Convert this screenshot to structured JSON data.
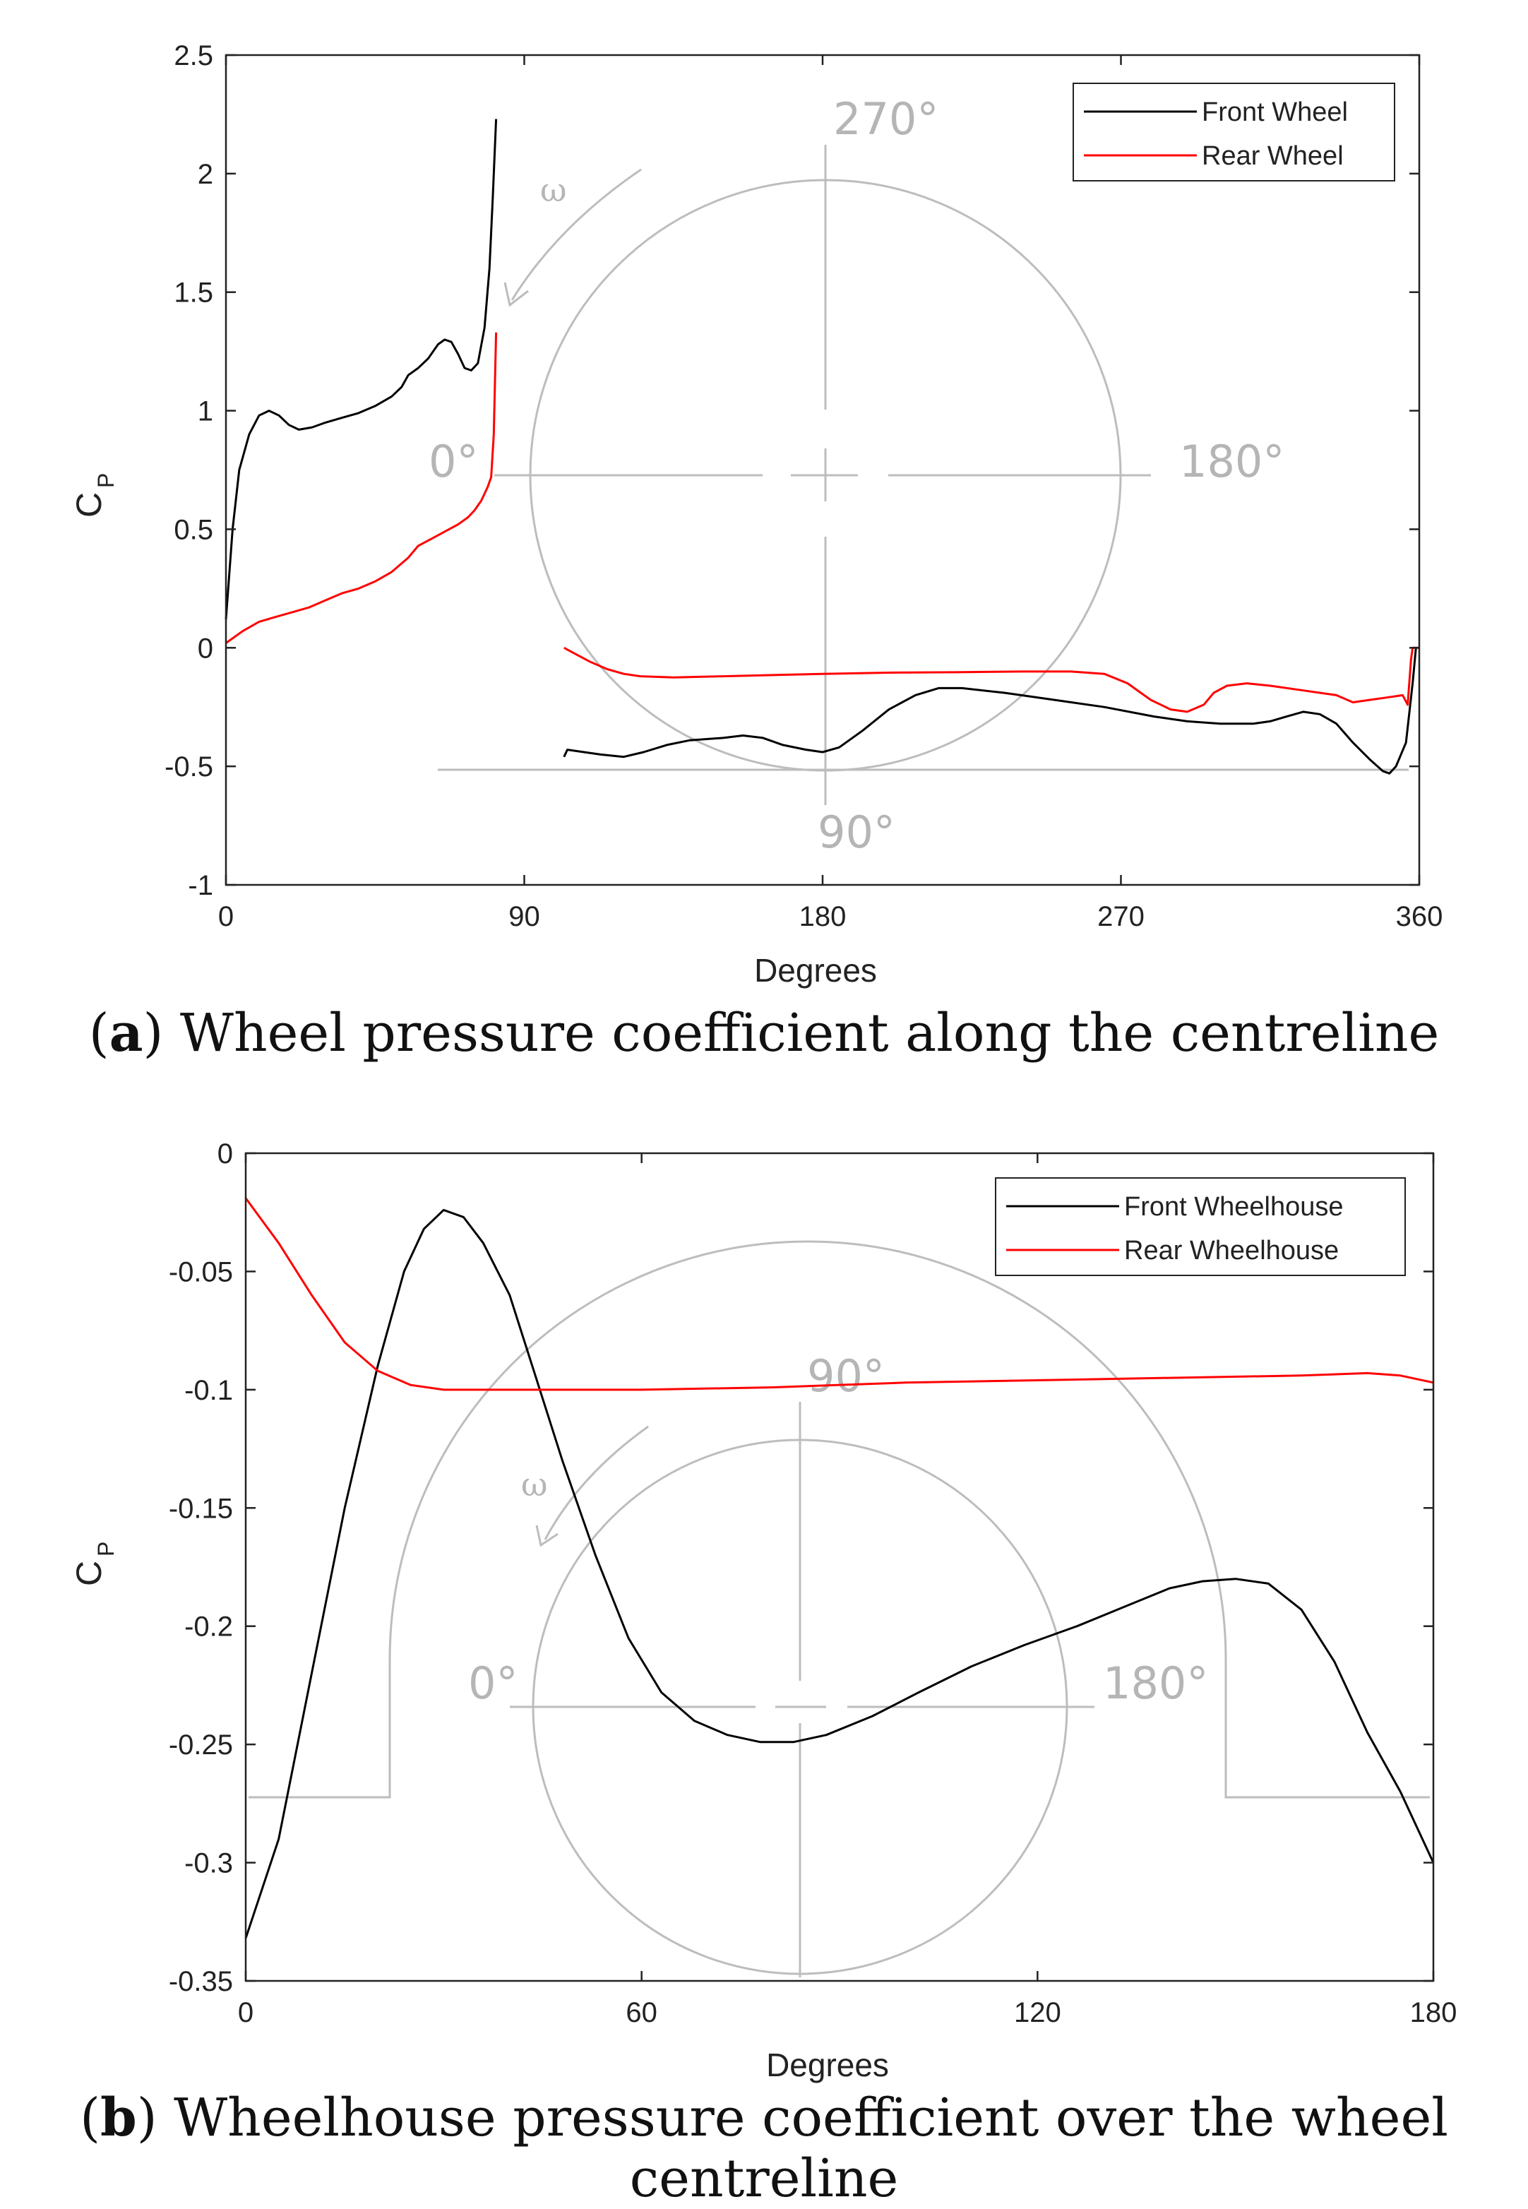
{
  "chart_data": [
    {
      "type": "line",
      "caption_label": "a",
      "caption_text": "Wheel pressure coefficient along the centreline",
      "xlabel": "Degrees",
      "ylabel": "C",
      "ylabel_sub": "P",
      "xlim": [
        0,
        360
      ],
      "ylim": [
        -1,
        2.5
      ],
      "xticks": [
        0,
        90,
        180,
        270,
        360
      ],
      "yticks": [
        -1,
        -0.5,
        0,
        0.5,
        1,
        1.5,
        2,
        2.5
      ],
      "ytick_labels": [
        "-1",
        "-0.5",
        "0",
        "0.5",
        "1",
        "1.5",
        "2",
        "2.5"
      ],
      "legend_position": "top-right",
      "series": [
        {
          "name": "Front Wheel",
          "color": "#000000",
          "segments": [
            [
              [
                0,
                0.12
              ],
              [
                2,
                0.5
              ],
              [
                4,
                0.75
              ],
              [
                7,
                0.9
              ],
              [
                10,
                0.98
              ],
              [
                13,
                1.0
              ],
              [
                16,
                0.98
              ],
              [
                19,
                0.94
              ],
              [
                22,
                0.92
              ],
              [
                26,
                0.93
              ],
              [
                30,
                0.95
              ],
              [
                35,
                0.97
              ],
              [
                40,
                0.99
              ],
              [
                45,
                1.02
              ],
              [
                50,
                1.06
              ],
              [
                53,
                1.1
              ],
              [
                55,
                1.15
              ],
              [
                58,
                1.18
              ],
              [
                61,
                1.22
              ],
              [
                64,
                1.28
              ],
              [
                66,
                1.3
              ],
              [
                68,
                1.29
              ],
              [
                70,
                1.24
              ],
              [
                72,
                1.18
              ],
              [
                74,
                1.17
              ],
              [
                76,
                1.2
              ],
              [
                78,
                1.35
              ],
              [
                79.5,
                1.6
              ],
              [
                80.5,
                1.9
              ],
              [
                81.5,
                2.23
              ]
            ],
            [
              [
                102,
                -0.46
              ],
              [
                103,
                -0.43
              ],
              [
                108,
                -0.44
              ],
              [
                113,
                -0.45
              ],
              [
                120,
                -0.46
              ],
              [
                126,
                -0.44
              ],
              [
                133,
                -0.41
              ],
              [
                140,
                -0.39
              ],
              [
                150,
                -0.38
              ],
              [
                156,
                -0.37
              ],
              [
                162,
                -0.38
              ],
              [
                168,
                -0.41
              ],
              [
                175,
                -0.43
              ],
              [
                180,
                -0.44
              ],
              [
                185,
                -0.42
              ],
              [
                192,
                -0.35
              ],
              [
                200,
                -0.26
              ],
              [
                208,
                -0.2
              ],
              [
                215,
                -0.17
              ],
              [
                222,
                -0.17
              ],
              [
                235,
                -0.19
              ],
              [
                250,
                -0.22
              ],
              [
                265,
                -0.25
              ],
              [
                280,
                -0.29
              ],
              [
                290,
                -0.31
              ],
              [
                300,
                -0.32
              ],
              [
                310,
                -0.32
              ],
              [
                315,
                -0.31
              ],
              [
                320,
                -0.29
              ],
              [
                325,
                -0.27
              ],
              [
                330,
                -0.28
              ],
              [
                335,
                -0.32
              ],
              [
                340,
                -0.4
              ],
              [
                345,
                -0.47
              ],
              [
                349,
                -0.52
              ],
              [
                351,
                -0.53
              ],
              [
                353,
                -0.5
              ],
              [
                356,
                -0.4
              ],
              [
                358,
                -0.15
              ],
              [
                359,
                0.0
              ]
            ]
          ]
        },
        {
          "name": "Rear Wheel",
          "color": "#ff0000",
          "segments": [
            [
              [
                0,
                0.02
              ],
              [
                5,
                0.07
              ],
              [
                10,
                0.11
              ],
              [
                15,
                0.13
              ],
              [
                20,
                0.15
              ],
              [
                25,
                0.17
              ],
              [
                30,
                0.2
              ],
              [
                35,
                0.23
              ],
              [
                40,
                0.25
              ],
              [
                45,
                0.28
              ],
              [
                50,
                0.32
              ],
              [
                55,
                0.38
              ],
              [
                58,
                0.43
              ],
              [
                62,
                0.46
              ],
              [
                66,
                0.49
              ],
              [
                70,
                0.52
              ],
              [
                73,
                0.55
              ],
              [
                75,
                0.58
              ],
              [
                77,
                0.62
              ],
              [
                78,
                0.65
              ],
              [
                79,
                0.68
              ],
              [
                80,
                0.72
              ],
              [
                80.8,
                0.9
              ],
              [
                81.2,
                1.15
              ],
              [
                81.5,
                1.33
              ]
            ],
            [
              [
                102,
                0.0
              ],
              [
                106,
                -0.03
              ],
              [
                110,
                -0.06
              ],
              [
                115,
                -0.09
              ],
              [
                120,
                -0.11
              ],
              [
                125,
                -0.12
              ],
              [
                135,
                -0.125
              ],
              [
                150,
                -0.12
              ],
              [
                165,
                -0.115
              ],
              [
                180,
                -0.11
              ],
              [
                200,
                -0.105
              ],
              [
                220,
                -0.103
              ],
              [
                240,
                -0.1
              ],
              [
                255,
                -0.1
              ],
              [
                265,
                -0.11
              ],
              [
                272,
                -0.15
              ],
              [
                279,
                -0.22
              ],
              [
                285,
                -0.26
              ],
              [
                290,
                -0.27
              ],
              [
                295,
                -0.24
              ],
              [
                298,
                -0.19
              ],
              [
                302,
                -0.16
              ],
              [
                308,
                -0.15
              ],
              [
                315,
                -0.16
              ],
              [
                325,
                -0.18
              ],
              [
                335,
                -0.2
              ],
              [
                340,
                -0.23
              ],
              [
                345,
                -0.22
              ],
              [
                350,
                -0.21
              ],
              [
                355,
                -0.2
              ],
              [
                356.5,
                -0.24
              ],
              [
                357.5,
                -0.05
              ],
              [
                358,
                0.0
              ],
              [
                360,
                0.0
              ]
            ]
          ]
        }
      ],
      "sketch": {
        "angle_labels": [
          "270°",
          "0°",
          "180°",
          "90°"
        ],
        "omega": "ω"
      }
    },
    {
      "type": "line",
      "caption_label": "b",
      "caption_text": "Wheelhouse pressure coefficient over the wheel centreline",
      "xlabel": "Degrees",
      "ylabel": "C",
      "ylabel_sub": "P",
      "xlim": [
        0,
        180
      ],
      "ylim": [
        -0.35,
        0
      ],
      "xticks": [
        0,
        60,
        120,
        180
      ],
      "yticks": [
        -0.35,
        -0.3,
        -0.25,
        -0.2,
        -0.15,
        -0.1,
        -0.05,
        0
      ],
      "ytick_labels": [
        "-0.35",
        "-0.3",
        "-0.25",
        "-0.2",
        "-0.15",
        "-0.1",
        "-0.05",
        "0"
      ],
      "legend_position": "top-right",
      "series": [
        {
          "name": "Front Wheelhouse",
          "color": "#000000",
          "segments": [
            [
              [
                0,
                -0.332
              ],
              [
                5,
                -0.29
              ],
              [
                10,
                -0.22
              ],
              [
                15,
                -0.15
              ],
              [
                20,
                -0.09
              ],
              [
                24,
                -0.05
              ],
              [
                27,
                -0.032
              ],
              [
                30,
                -0.024
              ],
              [
                33,
                -0.027
              ],
              [
                36,
                -0.038
              ],
              [
                40,
                -0.06
              ],
              [
                44,
                -0.095
              ],
              [
                48,
                -0.13
              ],
              [
                53,
                -0.17
              ],
              [
                58,
                -0.205
              ],
              [
                63,
                -0.228
              ],
              [
                68,
                -0.24
              ],
              [
                73,
                -0.246
              ],
              [
                78,
                -0.249
              ],
              [
                83,
                -0.249
              ],
              [
                88,
                -0.246
              ],
              [
                95,
                -0.238
              ],
              [
                102,
                -0.228
              ],
              [
                110,
                -0.217
              ],
              [
                118,
                -0.208
              ],
              [
                126,
                -0.2
              ],
              [
                133,
                -0.192
              ],
              [
                140,
                -0.184
              ],
              [
                145,
                -0.181
              ],
              [
                150,
                -0.18
              ],
              [
                155,
                -0.182
              ],
              [
                160,
                -0.193
              ],
              [
                165,
                -0.215
              ],
              [
                170,
                -0.245
              ],
              [
                175,
                -0.27
              ],
              [
                180,
                -0.3
              ]
            ]
          ]
        },
        {
          "name": "Rear Wheelhouse",
          "color": "#ff0000",
          "segments": [
            [
              [
                0,
                -0.019
              ],
              [
                5,
                -0.038
              ],
              [
                10,
                -0.06
              ],
              [
                15,
                -0.08
              ],
              [
                20,
                -0.092
              ],
              [
                25,
                -0.098
              ],
              [
                30,
                -0.1
              ],
              [
                40,
                -0.1
              ],
              [
                60,
                -0.1
              ],
              [
                80,
                -0.099
              ],
              [
                100,
                -0.097
              ],
              [
                120,
                -0.096
              ],
              [
                140,
                -0.095
              ],
              [
                160,
                -0.094
              ],
              [
                170,
                -0.093
              ],
              [
                175,
                -0.094
              ],
              [
                180,
                -0.097
              ]
            ]
          ]
        }
      ],
      "sketch": {
        "angle_labels": [
          "90°",
          "0°",
          "180°"
        ],
        "omega": "ω"
      }
    }
  ]
}
